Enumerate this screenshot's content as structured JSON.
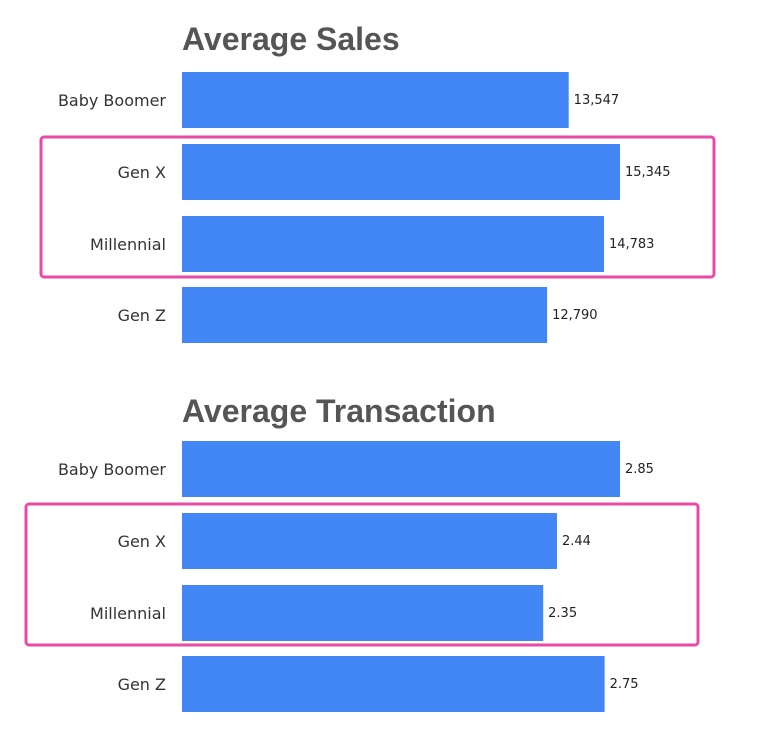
{
  "colors": {
    "bar": "#4287f5",
    "highlight": "#e94aa4",
    "title": "#555555",
    "label": "#333333",
    "value": "#222222"
  },
  "chart_data": [
    {
      "type": "bar",
      "orientation": "horizontal",
      "title": "Average Sales",
      "categories": [
        "Baby Boomer",
        "Gen X",
        "Millennial",
        "Gen Z"
      ],
      "values": [
        13547,
        15345,
        14783,
        12790
      ],
      "value_labels": [
        "13,547",
        "15,345",
        "14,783",
        "12,790"
      ],
      "highlighted": [
        "Gen X",
        "Millennial"
      ],
      "xlabel": "",
      "ylabel": "",
      "xlim": [
        0,
        15345
      ],
      "grid": false
    },
    {
      "type": "bar",
      "orientation": "horizontal",
      "title": "Average Transaction",
      "categories": [
        "Baby Boomer",
        "Gen X",
        "Millennial",
        "Gen Z"
      ],
      "values": [
        2.85,
        2.44,
        2.35,
        2.75
      ],
      "value_labels": [
        "2.85",
        "2.44",
        "2.35",
        "2.75"
      ],
      "highlighted": [
        "Gen X",
        "Millennial"
      ],
      "xlabel": "",
      "ylabel": "",
      "xlim": [
        0,
        2.85
      ],
      "grid": false
    }
  ]
}
